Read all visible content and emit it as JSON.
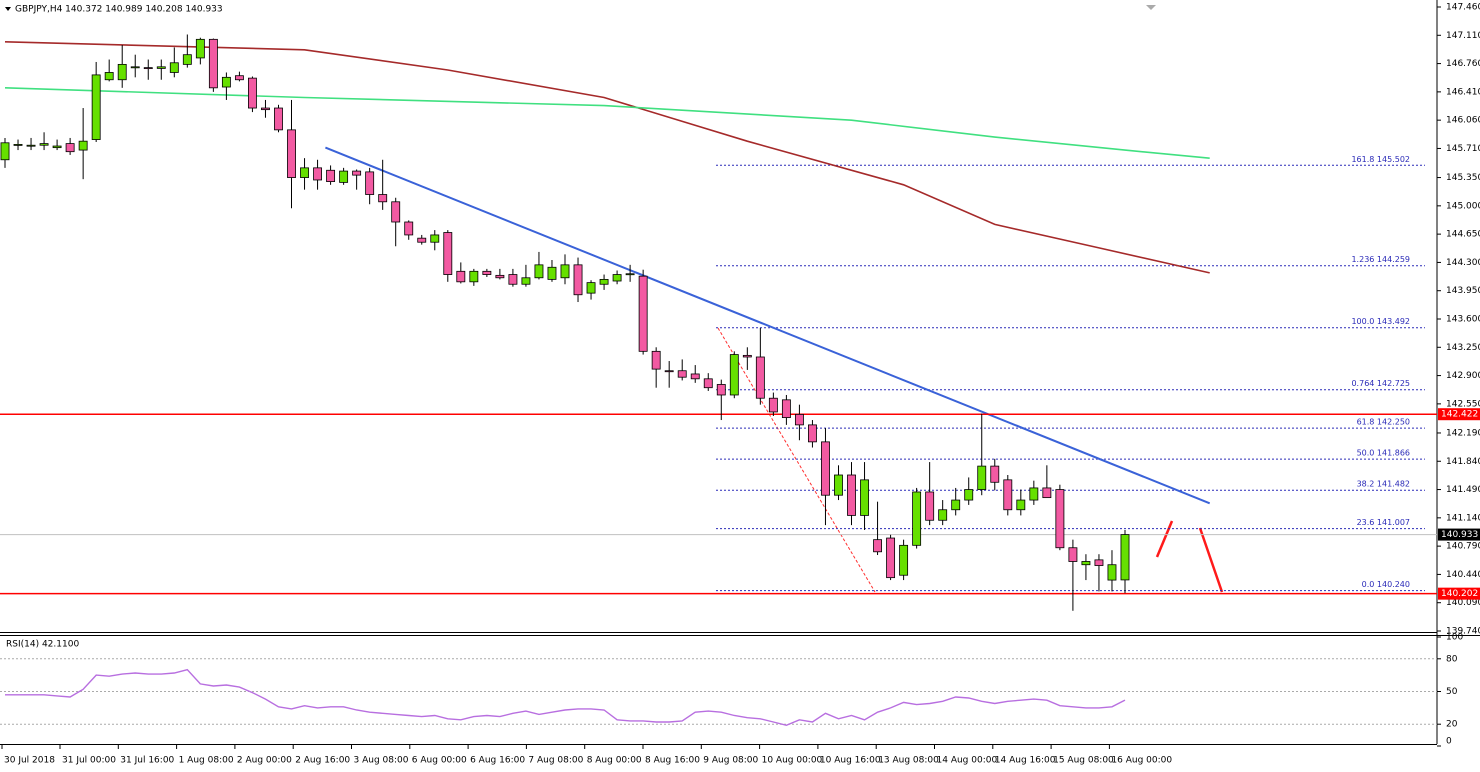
{
  "header": "GBPJPY,H4  140.372 140.989 140.208 140.933",
  "chart_data": {
    "type": "candlestick",
    "open": [
      145.57,
      145.75,
      145.74,
      145.75,
      145.72,
      145.77,
      145.69,
      145.82,
      146.56,
      146.56,
      146.71,
      146.71,
      146.7,
      146.65,
      146.75,
      146.83,
      147.06,
      146.47,
      146.61,
      146.58,
      146.21,
      146.21,
      145.94,
      145.35,
      145.47,
      145.44,
      145.29,
      145.43,
      145.42,
      145.14,
      145.05,
      144.8,
      144.6,
      144.55,
      144.67,
      144.19,
      144.06,
      144.19,
      144.14,
      144.15,
      144.03,
      144.11,
      144.09,
      144.11,
      144.27,
      143.92,
      144.03,
      144.07,
      144.15,
      144.13,
      143.2,
      142.96,
      142.96,
      142.92,
      142.86,
      142.79,
      142.66,
      143.15,
      143.13,
      142.62,
      142.6,
      142.42,
      142.29,
      142.08,
      141.42,
      141.67,
      141.17,
      140.87,
      140.89,
      140.43,
      140.8,
      141.46,
      141.11,
      141.24,
      141.36,
      141.49,
      141.78,
      141.61,
      141.24,
      141.36,
      141.51,
      141.49,
      140.77,
      140.56,
      140.62,
      140.37,
      140.372
    ],
    "high": [
      145.84,
      145.82,
      145.84,
      145.91,
      145.82,
      145.84,
      146.21,
      146.78,
      146.81,
      146.99,
      146.87,
      146.81,
      146.81,
      146.96,
      147.12,
      147.08,
      147.07,
      146.65,
      146.66,
      146.6,
      146.31,
      146.25,
      146.31,
      145.59,
      145.57,
      145.5,
      145.47,
      145.45,
      145.47,
      145.57,
      145.1,
      144.82,
      144.64,
      144.7,
      144.7,
      144.3,
      144.22,
      144.22,
      144.22,
      144.22,
      144.27,
      144.43,
      144.33,
      144.4,
      144.36,
      144.08,
      144.15,
      144.2,
      144.27,
      144.21,
      143.25,
      143.08,
      143.1,
      143.03,
      142.93,
      142.85,
      143.2,
      143.25,
      143.49,
      142.69,
      142.66,
      142.54,
      142.35,
      142.25,
      141.79,
      141.83,
      141.83,
      141.34,
      140.93,
      140.87,
      141.51,
      141.83,
      141.36,
      141.51,
      141.64,
      142.43,
      141.87,
      141.67,
      141.49,
      141.6,
      141.79,
      141.55,
      140.87,
      140.69,
      140.69,
      140.74,
      140.989
    ],
    "low": [
      145.47,
      145.69,
      145.69,
      145.69,
      145.69,
      145.63,
      145.33,
      145.79,
      146.54,
      146.46,
      146.59,
      146.56,
      146.56,
      146.59,
      146.71,
      146.75,
      146.41,
      146.31,
      146.54,
      146.16,
      146.09,
      145.91,
      144.97,
      145.2,
      145.2,
      145.26,
      145.26,
      145.2,
      145.02,
      144.95,
      144.5,
      144.58,
      144.52,
      144.45,
      144.06,
      144.04,
      144.01,
      144.12,
      144.09,
      144.0,
      144.0,
      144.09,
      144.06,
      144.03,
      143.81,
      143.84,
      143.96,
      144.03,
      144.06,
      143.16,
      142.75,
      142.75,
      142.84,
      142.81,
      142.71,
      142.35,
      142.62,
      142.97,
      142.54,
      142.4,
      142.29,
      142.1,
      142.01,
      141.05,
      141.36,
      141.05,
      140.99,
      140.68,
      140.37,
      140.37,
      140.76,
      141.05,
      141.05,
      141.17,
      141.3,
      141.42,
      141.48,
      141.17,
      141.17,
      141.3,
      141.42,
      140.74,
      139.99,
      140.37,
      140.23,
      140.23,
      140.208
    ],
    "close": [
      145.78,
      145.76,
      145.75,
      145.77,
      145.74,
      145.67,
      145.8,
      146.62,
      146.65,
      146.75,
      146.72,
      146.7,
      146.72,
      146.77,
      146.87,
      147.06,
      146.46,
      146.59,
      146.56,
      146.21,
      146.19,
      145.94,
      145.35,
      145.47,
      145.32,
      145.3,
      145.43,
      145.38,
      145.14,
      145.05,
      144.8,
      144.64,
      144.55,
      144.64,
      144.15,
      144.06,
      144.19,
      144.15,
      144.11,
      144.03,
      144.11,
      144.27,
      144.24,
      144.27,
      143.9,
      144.05,
      144.09,
      144.15,
      144.16,
      143.2,
      142.98,
      142.95,
      142.88,
      142.86,
      142.75,
      142.66,
      143.16,
      143.13,
      142.62,
      142.45,
      142.38,
      142.29,
      142.08,
      141.42,
      141.67,
      141.17,
      141.61,
      140.72,
      140.4,
      140.8,
      141.46,
      141.11,
      141.24,
      141.36,
      141.49,
      141.78,
      141.58,
      141.24,
      141.36,
      141.51,
      141.39,
      140.77,
      140.6,
      140.6,
      140.55,
      140.56,
      140.933
    ],
    "bull_color": "#66e000",
    "bear_color": "#f25aa2",
    "ylim": [
      139.74,
      147.46
    ],
    "yticks": [
      {
        "value": 147.46,
        "label": "147.460"
      },
      {
        "value": 147.11,
        "label": "147.110"
      },
      {
        "value": 146.76,
        "label": "146.760"
      },
      {
        "value": 146.41,
        "label": "146.410"
      },
      {
        "value": 146.06,
        "label": "146.060"
      },
      {
        "value": 145.71,
        "label": "145.710"
      },
      {
        "value": 145.35,
        "label": "145.350"
      },
      {
        "value": 145.0,
        "label": "145.000"
      },
      {
        "value": 144.65,
        "label": "144.650"
      },
      {
        "value": 144.3,
        "label": "144.300"
      },
      {
        "value": 143.95,
        "label": "143.950"
      },
      {
        "value": 143.6,
        "label": "143.600"
      },
      {
        "value": 143.25,
        "label": "143.250"
      },
      {
        "value": 142.9,
        "label": "142.900"
      },
      {
        "value": 142.55,
        "label": "142.550"
      },
      {
        "value": 142.19,
        "label": "142.190"
      },
      {
        "value": 141.84,
        "label": "141.840"
      },
      {
        "value": 141.49,
        "label": "141.490"
      },
      {
        "value": 141.14,
        "label": "141.140"
      },
      {
        "value": 140.79,
        "label": "140.790"
      },
      {
        "value": 140.44,
        "label": "140.440"
      },
      {
        "value": 140.09,
        "label": "140.090"
      },
      {
        "value": 139.74,
        "label": "139.740"
      }
    ],
    "time_labels": [
      "30 Jul 2018",
      "31 Jul 00:00",
      "31 Jul 16:00",
      "1 Aug 08:00",
      "2 Aug 00:00",
      "2 Aug 16:00",
      "3 Aug 08:00",
      "6 Aug 00:00",
      "6 Aug 16:00",
      "7 Aug 08:00",
      "8 Aug 00:00",
      "8 Aug 16:00",
      "9 Aug 08:00",
      "10 Aug 00:00",
      "10 Aug 16:00",
      "13 Aug 08:00",
      "14 Aug 00:00",
      "14 Aug 16:00",
      "15 Aug 08:00",
      "16 Aug 00:00"
    ],
    "lines": [
      {
        "x": [
          0,
          23,
          34,
          46,
          57,
          69,
          76,
          84,
          92.5
        ],
        "values": [
          147.03,
          146.93,
          146.68,
          146.34,
          145.8,
          145.26,
          144.77,
          144.48,
          144.17
        ],
        "color": "#a52a2a"
      },
      {
        "x": [
          0,
          23,
          46,
          65,
          76,
          86,
          92.5
        ],
        "values": [
          146.46,
          146.34,
          146.24,
          146.06,
          145.85,
          145.69,
          145.59
        ],
        "color": "#40e080"
      },
      {
        "x": [
          24.6,
          92.5
        ],
        "values": [
          145.72,
          141.32
        ],
        "color": "#3a62d8"
      }
    ],
    "fib_levels": [
      {
        "value": 145.502,
        "label": "161.8 145.502"
      },
      {
        "value": 144.259,
        "label": "1.236 144.259"
      },
      {
        "value": 143.492,
        "label": "100.0 143.492"
      },
      {
        "value": 142.725,
        "label": "0.764 142.725"
      },
      {
        "value": 142.25,
        "label": "61.8 142.250"
      },
      {
        "value": 141.866,
        "label": "50.0 141.866"
      },
      {
        "value": 141.482,
        "label": "38.2 141.482"
      },
      {
        "value": 141.007,
        "label": "23.6 141.007"
      },
      {
        "value": 140.24,
        "label": "0.0 140.240"
      }
    ],
    "fib_color": "#2b2bb8",
    "levels": [
      {
        "value": 142.422,
        "label": "142.422",
        "color": "#ff0000"
      },
      {
        "value": 140.202,
        "label": "140.202",
        "color": "#ff0000"
      }
    ],
    "current": {
      "value": 140.933,
      "label": "140.933",
      "color": "#c0c0c0"
    },
    "rsi": {
      "label": "RSI(14) 42.1100",
      "color": "#b86fe0",
      "ylim": [
        0,
        100
      ],
      "yticks": [
        100,
        80,
        50,
        20,
        0
      ],
      "values": [
        47,
        47,
        47,
        47,
        46,
        45,
        52,
        65,
        64,
        66,
        67,
        66,
        66,
        67,
        70,
        57,
        55,
        56,
        54,
        49,
        43,
        36,
        34,
        37,
        35,
        36,
        36,
        33,
        31,
        30,
        29,
        28,
        27,
        28,
        25,
        24,
        27,
        28,
        27,
        30,
        32,
        29,
        31,
        33,
        34,
        34,
        33,
        24,
        23,
        23,
        22,
        22,
        23,
        31,
        32,
        31,
        28,
        26,
        25,
        22,
        19,
        24,
        22,
        30,
        25,
        28,
        24,
        31,
        35,
        40,
        38,
        39,
        41,
        45,
        44,
        41,
        39,
        41,
        42,
        43,
        42,
        37,
        36,
        35,
        35,
        36,
        42.11
      ]
    }
  }
}
